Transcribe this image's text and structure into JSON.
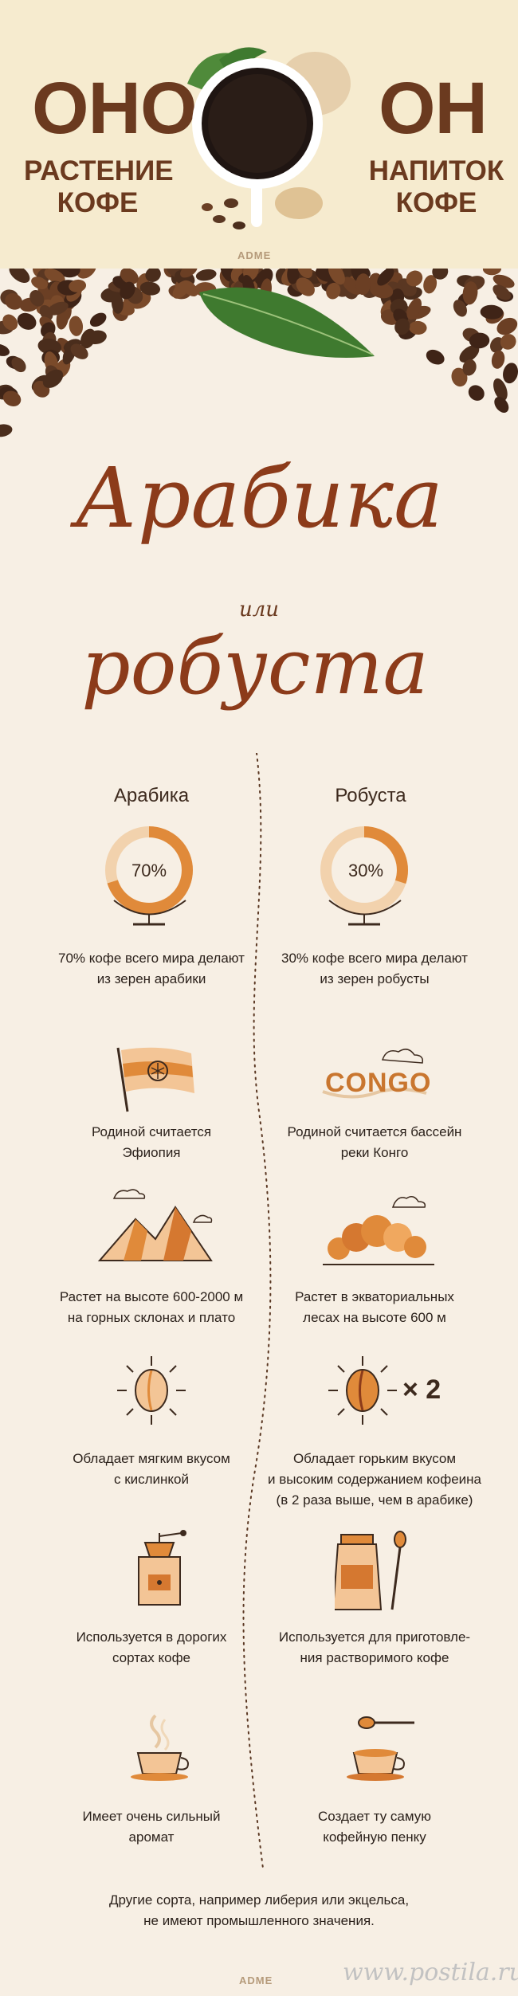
{
  "header": {
    "left_big": "ОНО",
    "left_sub_line1": "РАСТЕНИЕ",
    "left_sub_line2": "КОФЕ",
    "right_big": "ОН",
    "right_sub_line1": "НАПИТОК",
    "right_sub_line2": "КОФЕ",
    "watermark": "ADME"
  },
  "title": {
    "line1": "Арабика",
    "connector": "или",
    "line2": "робуста"
  },
  "columns": {
    "left_head": "Арабика",
    "right_head": "Робуста"
  },
  "rows": [
    {
      "left_pct": "70%",
      "left_line1": "70% кофе всего мира делают",
      "left_line2": "из зерен арабики",
      "right_pct": "30%",
      "right_line1": "30% кофе всего мира делают",
      "right_line2": "из зерен робусты",
      "left_fill": 0.7,
      "right_fill": 0.3
    },
    {
      "left_line1": "Родиной считается",
      "left_line2": "Эфиопия",
      "right_line1": "Родиной считается бассейн",
      "right_line2": "реки Конго",
      "right_badge": "CONGO"
    },
    {
      "left_line1": "Растет на высоте 600-2000 м",
      "left_line2": "на горных склонах и плато",
      "right_line1": "Растет в экваториальных",
      "right_line2": "лесах на высоте 600 м"
    },
    {
      "left_line1": "Обладает мягким вкусом",
      "left_line2": "с кислинкой",
      "right_line1": "Обладает горьким вкусом",
      "right_line2": "и высоким содержанием кофеина",
      "right_line3": "(в 2 раза выше, чем в арабике)",
      "right_multiplier": "× 2"
    },
    {
      "left_line1": "Используется в дорогих",
      "left_line2": "сортах кофе",
      "right_line1": "Используется для приготовле-",
      "right_line2": "ния растворимого кофе"
    },
    {
      "left_line1": "Имеет очень сильный",
      "left_line2": "аромат",
      "right_line1": "Создает ту самую",
      "right_line2": "кофейную пенку"
    }
  ],
  "footer": {
    "line1": "Другие сорта, например либерия или экцельса,",
    "line2": "не имеют промышленного значения.",
    "watermark": "ADME",
    "site": "www.postila.ru"
  },
  "colors": {
    "brown": "#6b3a1f",
    "orange": "#e08a3a",
    "rust": "#8c3b1a",
    "bg": "#f7efe4"
  }
}
